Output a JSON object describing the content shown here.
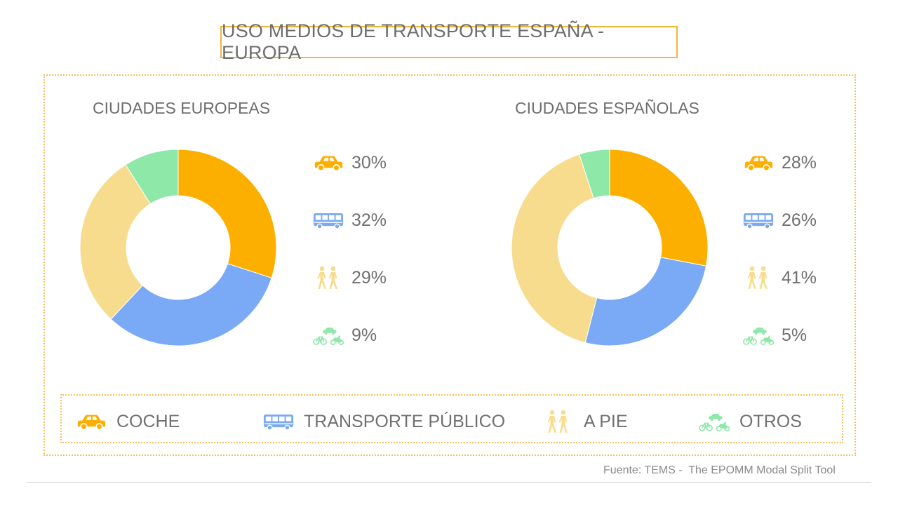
{
  "title": "USO MEDIOS DE TRANSPORTE ESPAÑA - EUROPA",
  "source": "Fuente: TEMS -  The EPOMM Modal Split Tool",
  "colors": {
    "coche": "#fdaf00",
    "transporte": "#7aaaf6",
    "pie": "#f8dc8e",
    "otros": "#8ee8a8",
    "frame": "#f4c060"
  },
  "legend": [
    {
      "label": "COCHE",
      "icon": "car-icon"
    },
    {
      "label": "TRANSPORTE PÚBLICO",
      "icon": "bus-icon"
    },
    {
      "label": "A PIE",
      "icon": "pedestrians-icon"
    },
    {
      "label": "OTROS",
      "icon": "other-vehicles-icon"
    }
  ],
  "chart_data": [
    {
      "type": "pie",
      "title": "CIUDADES EUROPEAS",
      "categories": [
        "COCHE",
        "TRANSPORTE PÚBLICO",
        "A PIE",
        "OTROS"
      ],
      "values": [
        30,
        32,
        29,
        9
      ],
      "labels": [
        "30%",
        "32%",
        "29%",
        "9%"
      ]
    },
    {
      "type": "pie",
      "title": "CIUDADES ESPAÑOLAS",
      "categories": [
        "COCHE",
        "TRANSPORTE PÚBLICO",
        "A PIE",
        "OTROS"
      ],
      "values": [
        28,
        26,
        41,
        5
      ],
      "labels": [
        "28%",
        "26%",
        "41%",
        "5%"
      ]
    }
  ]
}
